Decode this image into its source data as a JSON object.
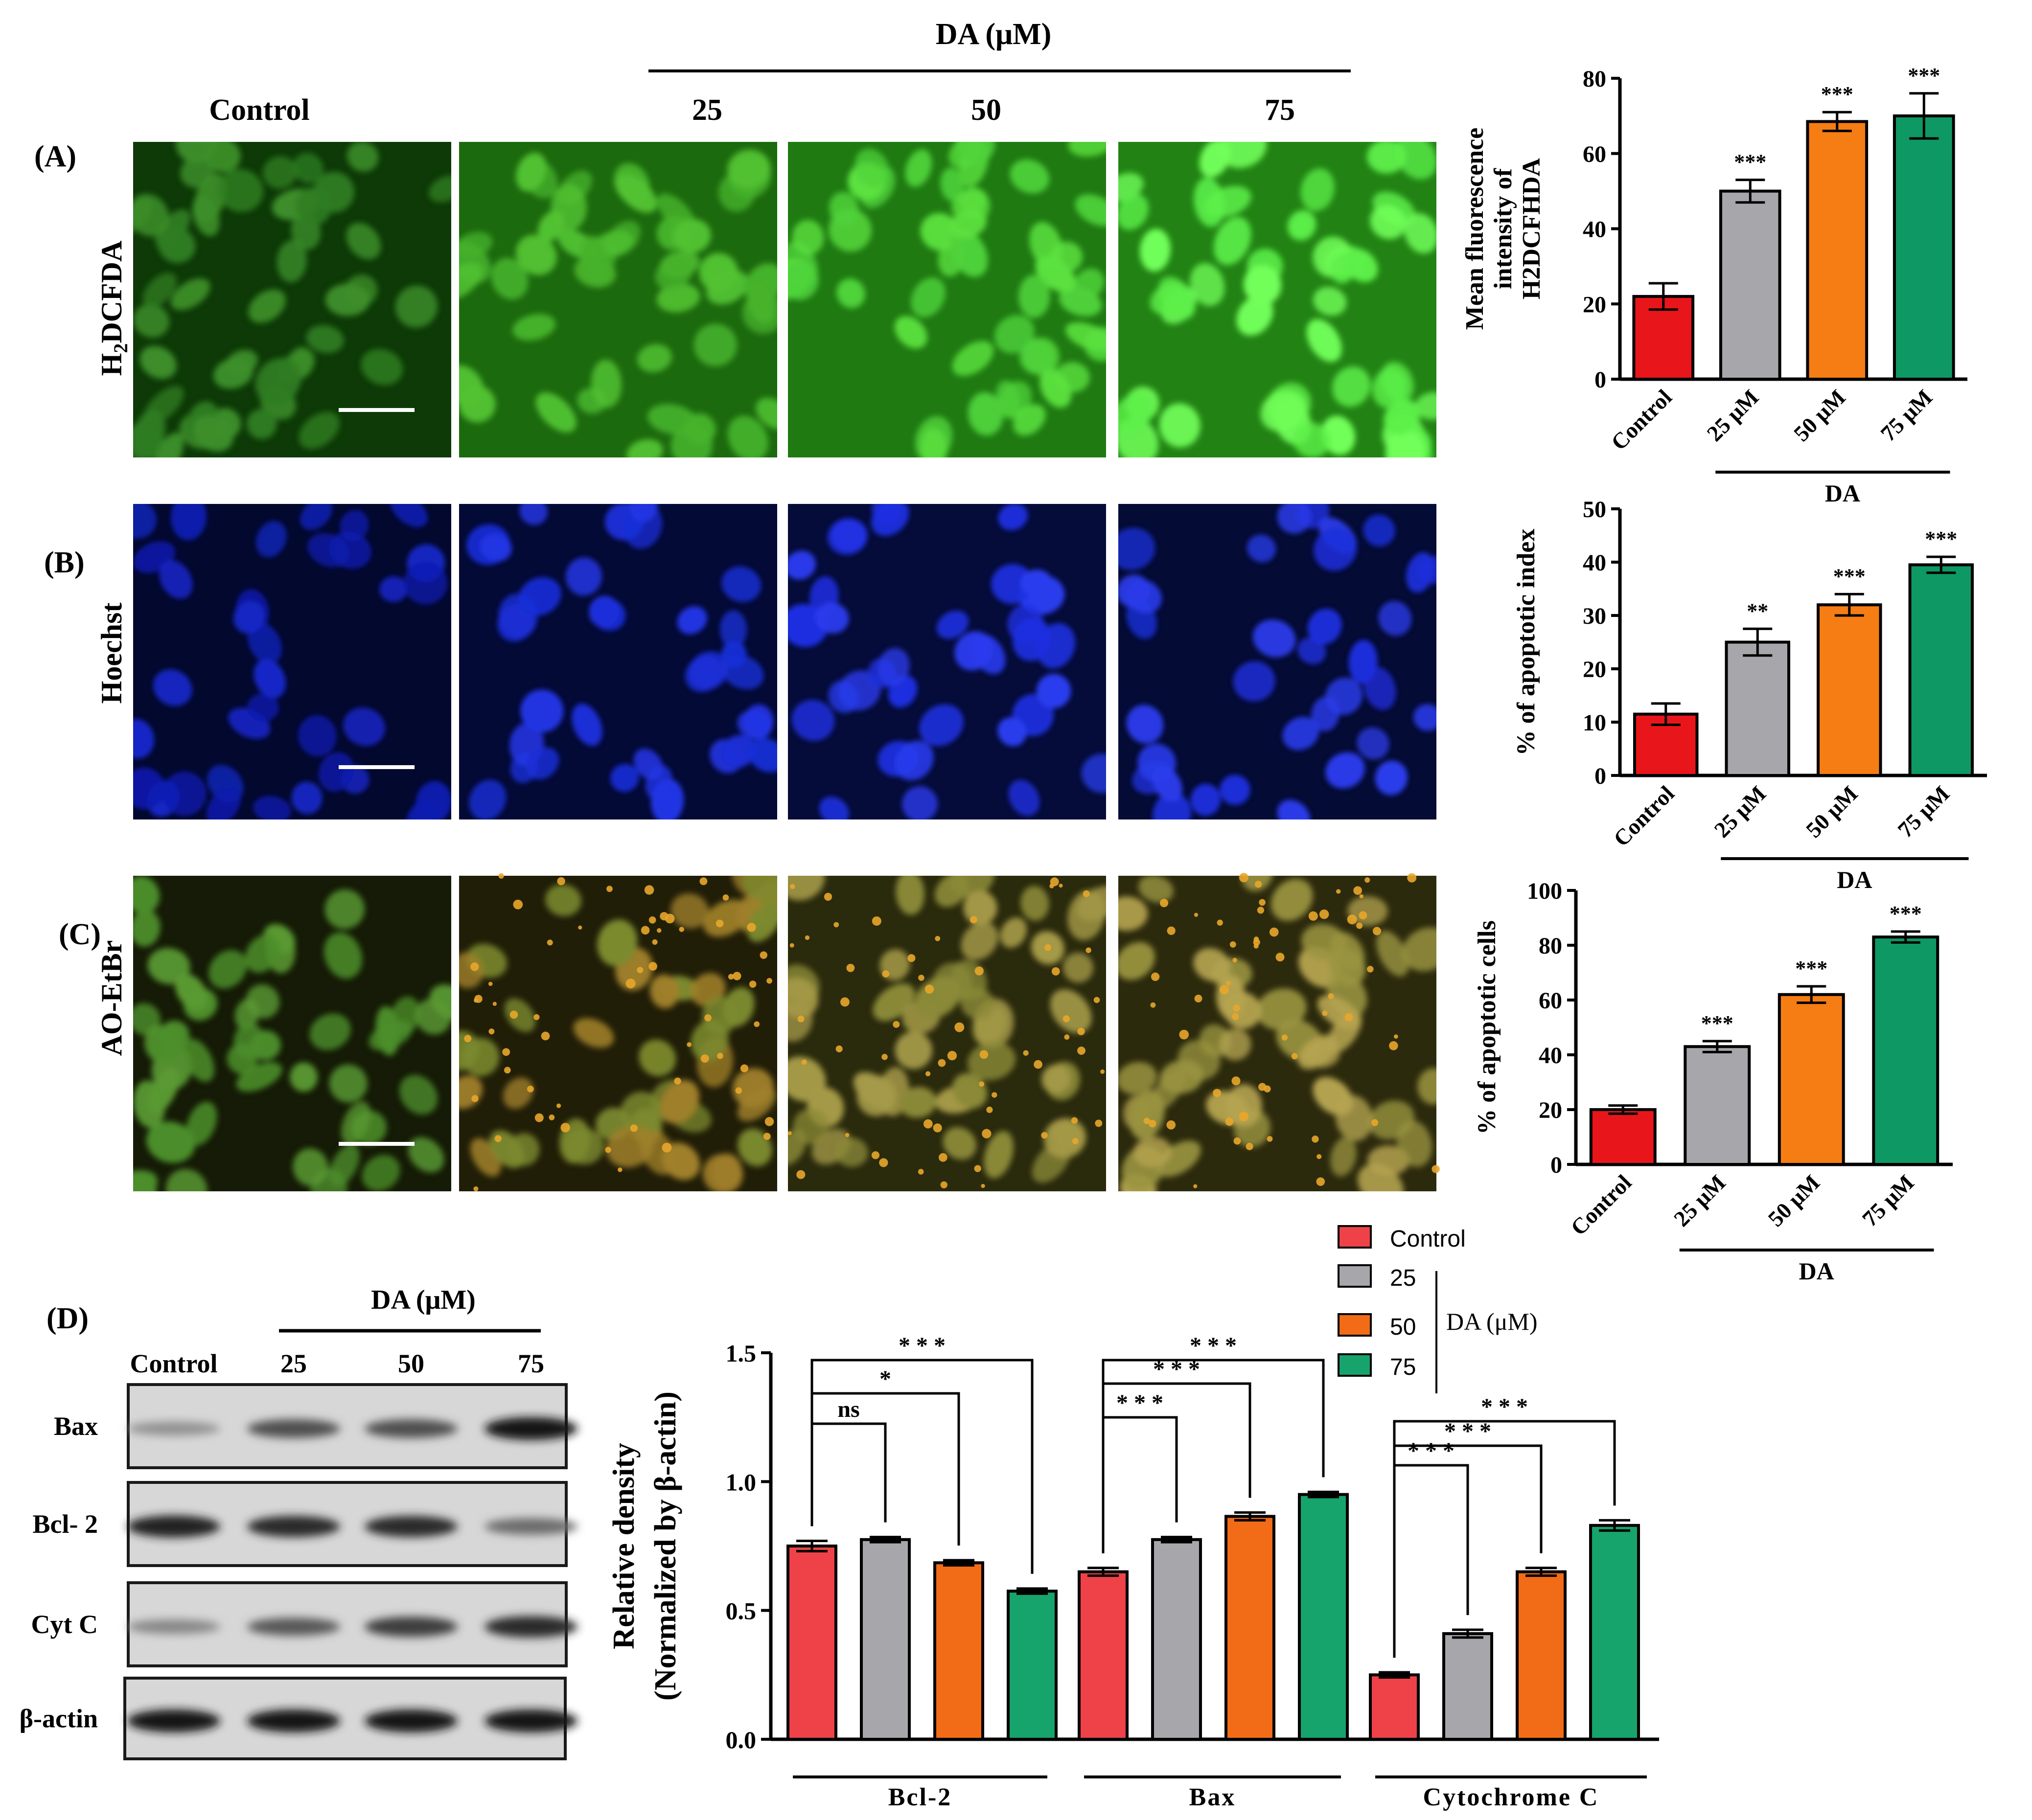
{
  "header": {
    "control": "Control",
    "da_group": "DA (μM)",
    "doses": [
      "25",
      "50",
      "75"
    ]
  },
  "rows": [
    {
      "letter": "(A)",
      "stain_pre": "H",
      "stain_sub": "2",
      "stain_post": "DCFDA",
      "color": "#2f9a0f"
    },
    {
      "letter": "(B)",
      "stain": "Hoechst",
      "color": "#0b1bb0"
    },
    {
      "letter": "(C)",
      "stain": "AO-EtBr",
      "color": "#6d6b24"
    }
  ],
  "colors": {
    "control": "#e8161b",
    "dose25": "#a7a6ab",
    "dose50": "#f57d14",
    "dose75": "#0e9864",
    "control_d": "#ee4248",
    "dose50_d": "#f26b16",
    "dose75_d": "#17a36c"
  },
  "chart_data": [
    {
      "type": "bar",
      "panel": "A",
      "ylabel_lines": [
        "Mean fluorescence",
        "intensity of",
        "H2DCFHDA"
      ],
      "categories": [
        "Control",
        "25 μM",
        "50 μM",
        "75 μM"
      ],
      "values": [
        22,
        50,
        68.5,
        70
      ],
      "errors": [
        3.5,
        3,
        2.5,
        6
      ],
      "ylim": [
        0,
        80
      ],
      "yticks": [
        "0",
        "20",
        "40",
        "60",
        "80"
      ],
      "significance": [
        "",
        "***",
        "***",
        "***"
      ],
      "group_label": "DA"
    },
    {
      "type": "bar",
      "panel": "B",
      "ylabel": "% of apoptotic index",
      "categories": [
        "Control",
        "25 μM",
        "50 μM",
        "75 μM"
      ],
      "values": [
        11.5,
        25,
        32,
        39.5
      ],
      "errors": [
        2,
        2.5,
        2,
        1.5
      ],
      "ylim": [
        0,
        50
      ],
      "yticks": [
        "0",
        "10",
        "20",
        "30",
        "40",
        "50"
      ],
      "significance": [
        "",
        "**",
        "***",
        "***"
      ],
      "group_label": "DA"
    },
    {
      "type": "bar",
      "panel": "C",
      "ylabel": "% of apoptotic cells",
      "categories": [
        "Control",
        "25 μM",
        "50 μM",
        "75 μM"
      ],
      "values": [
        20,
        43,
        62,
        83
      ],
      "errors": [
        1.5,
        2,
        3,
        2
      ],
      "ylim": [
        0,
        100
      ],
      "yticks": [
        "0",
        "20",
        "40",
        "60",
        "80",
        "100"
      ],
      "significance": [
        "",
        "***",
        "***",
        "***"
      ],
      "group_label": "DA"
    },
    {
      "type": "bar",
      "panel": "D",
      "ylabel_lines": [
        "Relative density",
        "(Normalized by  β-actin)"
      ],
      "groups": [
        "Bcl-2",
        "Bax",
        "Cytochrome C"
      ],
      "series": [
        {
          "name": "Control",
          "values": [
            0.75,
            0.65,
            0.25
          ],
          "errors": [
            0.02,
            0.015,
            0.01
          ]
        },
        {
          "name": "25",
          "values": [
            0.775,
            0.775,
            0.41
          ],
          "errors": [
            0.01,
            0.01,
            0.015
          ]
        },
        {
          "name": "50",
          "values": [
            0.685,
            0.865,
            0.65
          ],
          "errors": [
            0.01,
            0.015,
            0.015
          ]
        },
        {
          "name": "75",
          "values": [
            0.575,
            0.95,
            0.83
          ],
          "errors": [
            0.01,
            0.01,
            0.02
          ]
        }
      ],
      "ylim": [
        0,
        1.5
      ],
      "yticks": [
        "0.0",
        "0.5",
        "1.0",
        "1.5"
      ],
      "brackets": [
        {
          "group": 0,
          "from": 0,
          "to": 1,
          "label": "ns"
        },
        {
          "group": 0,
          "from": 0,
          "to": 2,
          "label": "*"
        },
        {
          "group": 0,
          "from": 0,
          "to": 3,
          "label": "* * *"
        },
        {
          "group": 1,
          "from": 0,
          "to": 1,
          "label": "* * *"
        },
        {
          "group": 1,
          "from": 0,
          "to": 2,
          "label": "* * *"
        },
        {
          "group": 1,
          "from": 0,
          "to": 3,
          "label": "* * *"
        },
        {
          "group": 2,
          "from": 0,
          "to": 1,
          "label": "* * *"
        },
        {
          "group": 2,
          "from": 0,
          "to": 2,
          "label": "* * *"
        },
        {
          "group": 2,
          "from": 0,
          "to": 3,
          "label": "* * *"
        }
      ],
      "legend": {
        "group_label": "DA (μM)"
      }
    }
  ],
  "western": {
    "letter": "(D)",
    "group_label": "DA (μM)",
    "lanes": [
      "Control",
      "25",
      "50",
      "75"
    ],
    "proteins": [
      {
        "name": "Bax",
        "intensity": [
          0.3,
          0.65,
          0.65,
          0.95
        ]
      },
      {
        "name": "Bcl- 2",
        "intensity": [
          0.9,
          0.85,
          0.85,
          0.5
        ]
      },
      {
        "name": "Cyt C",
        "intensity": [
          0.35,
          0.6,
          0.75,
          0.85
        ]
      },
      {
        "name": "β-actin",
        "intensity": [
          0.95,
          0.95,
          0.95,
          0.95
        ]
      }
    ]
  }
}
